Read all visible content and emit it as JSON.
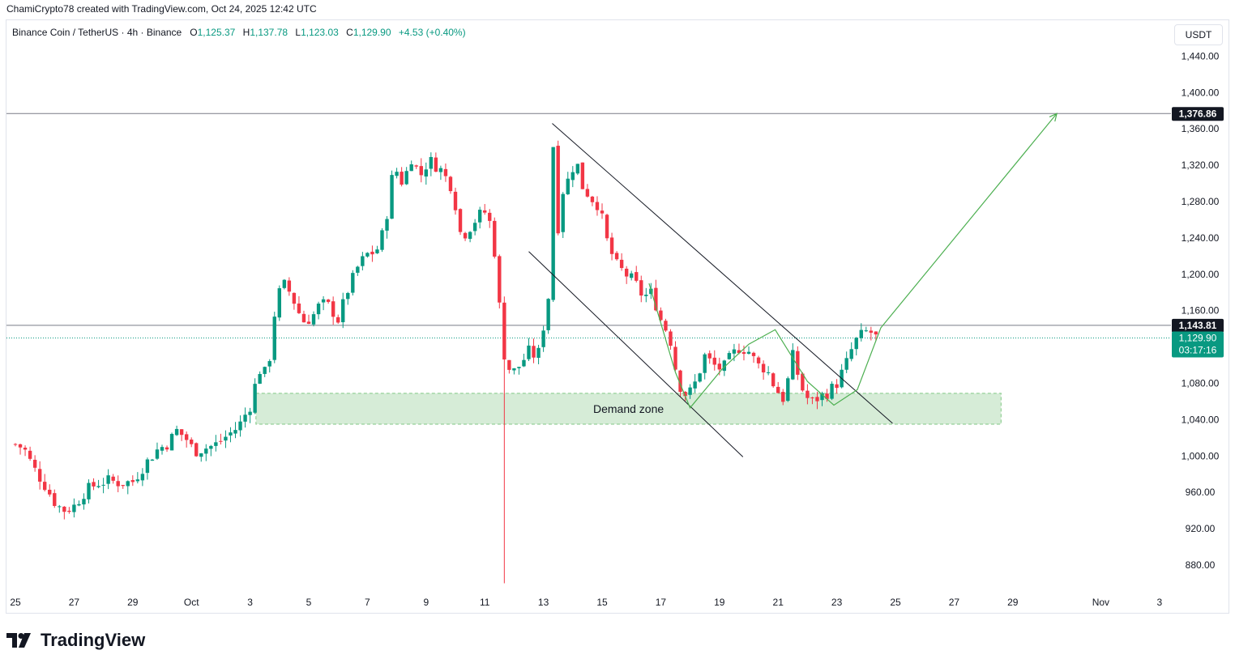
{
  "header": {
    "attribution": "ChamiCrypto78 created with TradingView.com, Oct 24, 2025 12:42 UTC",
    "symbol": "Binance Coin / TetherUS · 4h · Binance",
    "o_label": "O",
    "o_value": "1,125.37",
    "h_label": "H",
    "h_value": "1,137.78",
    "l_label": "L",
    "l_value": "1,123.03",
    "c_label": "C",
    "c_value": "1,129.90",
    "change": "+4.53 (+0.40%)"
  },
  "currency": "USDT",
  "brand": "TradingView",
  "chart_data": {
    "type": "candlestick",
    "title": "Binance Coin / TetherUS · 4h · Binance",
    "y_ticks": [
      880,
      920,
      960,
      1000,
      1040,
      1080,
      1120,
      1160,
      1200,
      1240,
      1280,
      1320,
      1360,
      1400,
      1440
    ],
    "y_tick_labels": [
      "880.00",
      "920.00",
      "960.00",
      "1,000.00",
      "1,040.00",
      "1,080.00",
      "",
      "1,160.00",
      "1,200.00",
      "1,240.00",
      "1,280.00",
      "1,320.00",
      "1,360.00",
      "1,400.00",
      "1,440.00"
    ],
    "x_ticks": [
      {
        "label": "25",
        "day": 0
      },
      {
        "label": "27",
        "day": 2
      },
      {
        "label": "29",
        "day": 4
      },
      {
        "label": "Oct",
        "day": 6
      },
      {
        "label": "3",
        "day": 8
      },
      {
        "label": "5",
        "day": 10
      },
      {
        "label": "7",
        "day": 12
      },
      {
        "label": "9",
        "day": 14
      },
      {
        "label": "11",
        "day": 16
      },
      {
        "label": "13",
        "day": 18
      },
      {
        "label": "15",
        "day": 20
      },
      {
        "label": "17",
        "day": 22
      },
      {
        "label": "19",
        "day": 24
      },
      {
        "label": "21",
        "day": 26
      },
      {
        "label": "23",
        "day": 28
      },
      {
        "label": "25",
        "day": 30
      },
      {
        "label": "27",
        "day": 32
      },
      {
        "label": "29",
        "day": 34
      },
      {
        "label": "Nov",
        "day": 37
      },
      {
        "label": "3",
        "day": 39
      }
    ],
    "anchor_points": [
      [
        0,
        1013
      ],
      [
        0.3,
        1008
      ],
      [
        0.6,
        988
      ],
      [
        1.0,
        968
      ],
      [
        1.4,
        946
      ],
      [
        1.7,
        940
      ],
      [
        2.0,
        945
      ],
      [
        2.4,
        962
      ],
      [
        2.8,
        970
      ],
      [
        3.2,
        973
      ],
      [
        3.6,
        970
      ],
      [
        4.0,
        972
      ],
      [
        4.4,
        990
      ],
      [
        4.8,
        1006
      ],
      [
        5.2,
        1014
      ],
      [
        5.5,
        1028
      ],
      [
        5.8,
        1020
      ],
      [
        6.1,
        1005
      ],
      [
        6.4,
        1008
      ],
      [
        6.8,
        1012
      ],
      [
        7.2,
        1022
      ],
      [
        7.6,
        1032
      ],
      [
        8.0,
        1055
      ],
      [
        8.3,
        1095
      ],
      [
        8.6,
        1090
      ],
      [
        8.9,
        1175
      ],
      [
        9.2,
        1190
      ],
      [
        9.5,
        1170
      ],
      [
        9.8,
        1148
      ],
      [
        10.1,
        1152
      ],
      [
        10.4,
        1168
      ],
      [
        10.7,
        1165
      ],
      [
        11.0,
        1150
      ],
      [
        11.3,
        1180
      ],
      [
        11.7,
        1210
      ],
      [
        12.0,
        1222
      ],
      [
        12.3,
        1225
      ],
      [
        12.6,
        1252
      ],
      [
        12.9,
        1320
      ],
      [
        13.2,
        1300
      ],
      [
        13.5,
        1328
      ],
      [
        13.8,
        1308
      ],
      [
        14.1,
        1326
      ],
      [
        14.5,
        1315
      ],
      [
        14.9,
        1295
      ],
      [
        15.2,
        1240
      ],
      [
        15.5,
        1252
      ],
      [
        15.8,
        1265
      ],
      [
        16.1,
        1270
      ],
      [
        16.4,
        1212
      ],
      [
        16.6,
        1118
      ],
      [
        16.9,
        1090
      ],
      [
        17.2,
        1100
      ],
      [
        17.5,
        1115
      ],
      [
        17.8,
        1108
      ],
      [
        18.1,
        1160
      ],
      [
        18.4,
        1228
      ],
      [
        18.7,
        1300
      ],
      [
        18.9,
        1305
      ],
      [
        19.1,
        1330
      ],
      [
        19.3,
        1298
      ],
      [
        19.6,
        1285
      ],
      [
        19.9,
        1275
      ],
      [
        20.2,
        1232
      ],
      [
        20.5,
        1210
      ],
      [
        20.8,
        1200
      ],
      [
        21.1,
        1192
      ],
      [
        21.4,
        1175
      ],
      [
        21.7,
        1180
      ],
      [
        22.0,
        1150
      ],
      [
        22.3,
        1132
      ],
      [
        22.6,
        1080
      ],
      [
        22.9,
        1065
      ],
      [
        23.2,
        1082
      ],
      [
        23.5,
        1110
      ],
      [
        23.8,
        1100
      ],
      [
        24.1,
        1095
      ],
      [
        24.4,
        1110
      ],
      [
        24.7,
        1120
      ],
      [
        25.0,
        1115
      ],
      [
        25.3,
        1100
      ],
      [
        25.6,
        1096
      ],
      [
        25.9,
        1075
      ],
      [
        26.2,
        1062
      ],
      [
        26.5,
        1110
      ],
      [
        26.8,
        1075
      ],
      [
        27.1,
        1058
      ],
      [
        27.4,
        1065
      ],
      [
        27.7,
        1070
      ],
      [
        28.0,
        1080
      ],
      [
        28.3,
        1100
      ],
      [
        28.6,
        1125
      ],
      [
        28.9,
        1135
      ],
      [
        29.1,
        1138
      ],
      [
        29.35,
        1130
      ]
    ],
    "levels": [
      {
        "price": 1376.86,
        "label": "1,376.86",
        "style": "resistance"
      },
      {
        "price": 1143.81,
        "label": "1,143.81",
        "style": "resistance"
      }
    ],
    "last_price": {
      "price": 1129.9,
      "label": "1,129.90",
      "countdown": "03:17:16"
    },
    "demand_zone": {
      "label": "Demand zone",
      "price_low": 1035,
      "price_high": 1069,
      "day_start": 8.2,
      "day_end": 33.6
    },
    "channel_lines": [
      {
        "from": [
          18.3,
          1366
        ],
        "to": [
          29.9,
          1036
        ]
      },
      {
        "from": [
          17.5,
          1225
        ],
        "to": [
          24.8,
          999
        ]
      }
    ],
    "projection_path": [
      [
        21.6,
        1190
      ],
      [
        22.5,
        1092
      ],
      [
        23.0,
        1053
      ],
      [
        24.1,
        1096
      ],
      [
        25.0,
        1123
      ],
      [
        25.9,
        1139
      ],
      [
        27.0,
        1082
      ],
      [
        27.9,
        1056
      ],
      [
        28.7,
        1073
      ],
      [
        29.5,
        1141
      ],
      [
        35.5,
        1376.86
      ]
    ]
  }
}
